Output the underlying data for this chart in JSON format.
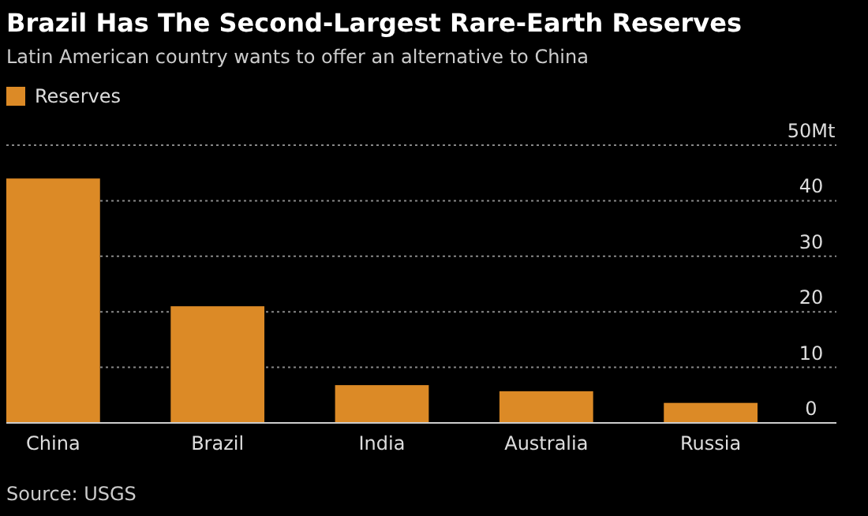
{
  "chart_data": {
    "type": "bar",
    "title": "Brazil Has The Second-Largest Rare-Earth Reserves",
    "subtitle": "Latin American country wants to offer an alternative to China",
    "categories": [
      "China",
      "Brazil",
      "India",
      "Australia",
      "Russia"
    ],
    "series": [
      {
        "name": "Reserves",
        "color": "#dc8a26",
        "values": [
          44,
          21,
          6.8,
          5.7,
          3.6
        ]
      }
    ],
    "ylim": [
      0,
      50
    ],
    "yticks": [
      0,
      10,
      20,
      30,
      40,
      {
        "value": 50,
        "label": "50Mt"
      }
    ],
    "grid": "y",
    "legend": "top left",
    "annotations": [
      "Source: USGS"
    ]
  }
}
